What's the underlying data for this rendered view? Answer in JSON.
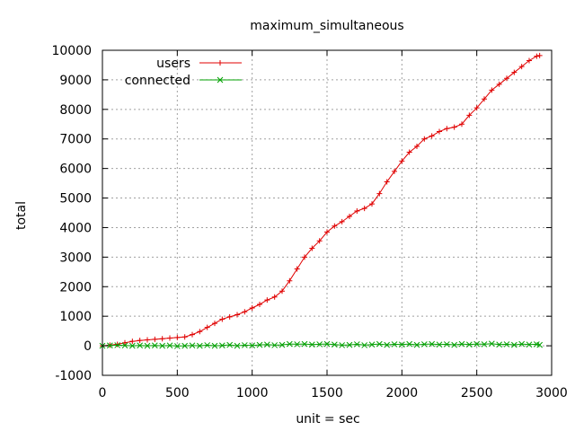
{
  "chart_data": {
    "type": "line",
    "title": "maximum_simultaneous",
    "xlabel": "unit = sec",
    "ylabel": "total",
    "xlim": [
      0,
      3000
    ],
    "ylim": [
      -1000,
      10000
    ],
    "xticks": [
      0,
      500,
      1000,
      1500,
      2000,
      2500,
      3000
    ],
    "yticks": [
      -1000,
      0,
      1000,
      2000,
      3000,
      4000,
      5000,
      6000,
      7000,
      8000,
      9000,
      10000
    ],
    "grid": true,
    "legend_position": "top-left",
    "series": [
      {
        "name": "users",
        "color": "#e00000",
        "marker": "plus",
        "x": [
          0,
          50,
          100,
          150,
          200,
          250,
          300,
          350,
          400,
          450,
          500,
          550,
          600,
          650,
          700,
          750,
          800,
          850,
          900,
          950,
          1000,
          1050,
          1100,
          1150,
          1200,
          1250,
          1300,
          1350,
          1400,
          1450,
          1500,
          1550,
          1600,
          1650,
          1700,
          1750,
          1800,
          1850,
          1900,
          1950,
          2000,
          2050,
          2100,
          2150,
          2200,
          2250,
          2300,
          2350,
          2400,
          2450,
          2500,
          2550,
          2600,
          2650,
          2700,
          2750,
          2800,
          2850,
          2900,
          2920
        ],
        "y": [
          0,
          20,
          50,
          100,
          150,
          180,
          200,
          220,
          240,
          260,
          280,
          300,
          380,
          480,
          620,
          760,
          900,
          980,
          1050,
          1150,
          1280,
          1400,
          1550,
          1650,
          1850,
          2200,
          2600,
          3000,
          3300,
          3550,
          3850,
          4050,
          4200,
          4380,
          4560,
          4650,
          4800,
          5150,
          5550,
          5900,
          6250,
          6550,
          6750,
          7000,
          7100,
          7250,
          7350,
          7400,
          7500,
          7800,
          8050,
          8350,
          8650,
          8850,
          9050,
          9250,
          9450,
          9650,
          9800,
          9820
        ]
      },
      {
        "name": "connected",
        "color": "#00a000",
        "marker": "cross",
        "x": [
          0,
          50,
          100,
          150,
          200,
          250,
          300,
          350,
          400,
          450,
          500,
          550,
          600,
          650,
          700,
          750,
          800,
          850,
          900,
          950,
          1000,
          1050,
          1100,
          1150,
          1200,
          1250,
          1300,
          1350,
          1400,
          1450,
          1500,
          1550,
          1600,
          1650,
          1700,
          1750,
          1800,
          1850,
          1900,
          1950,
          2000,
          2050,
          2100,
          2150,
          2200,
          2250,
          2300,
          2350,
          2400,
          2450,
          2500,
          2550,
          2600,
          2650,
          2700,
          2750,
          2800,
          2850,
          2900,
          2920
        ],
        "y": [
          0,
          10,
          20,
          10,
          0,
          10,
          0,
          10,
          0,
          10,
          -10,
          0,
          10,
          0,
          20,
          0,
          10,
          30,
          0,
          20,
          10,
          30,
          40,
          20,
          30,
          60,
          50,
          60,
          40,
          50,
          60,
          40,
          20,
          30,
          50,
          20,
          40,
          60,
          30,
          50,
          40,
          60,
          30,
          50,
          60,
          40,
          50,
          30,
          60,
          40,
          60,
          50,
          70,
          40,
          50,
          30,
          60,
          40,
          50,
          30
        ]
      }
    ]
  }
}
